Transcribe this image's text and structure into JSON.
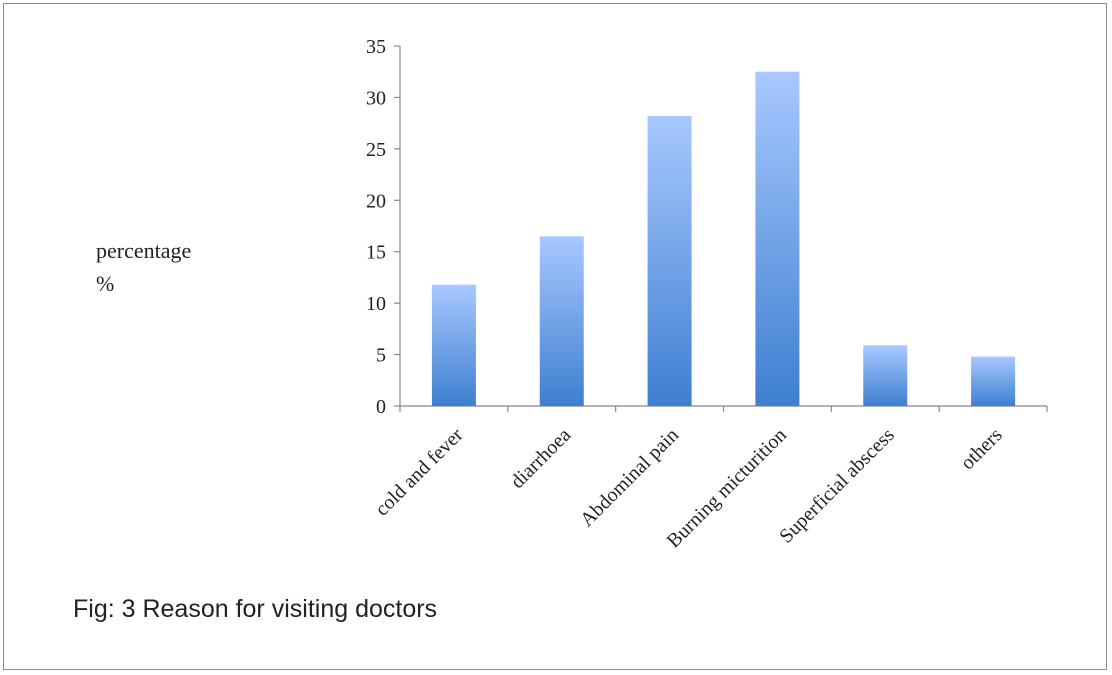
{
  "chart_data": {
    "type": "bar",
    "categories": [
      "cold and fever",
      "diarrhoea",
      "Abdominal pain",
      "Burning micturition",
      "Superficial abscess",
      "others"
    ],
    "values": [
      11.8,
      16.5,
      28.2,
      32.5,
      5.9,
      4.8
    ],
    "ylabel_line1": "percentage",
    "ylabel_line2": "%",
    "ylim": [
      0,
      35
    ],
    "yticks": [
      0,
      5,
      10,
      15,
      20,
      25,
      30,
      35
    ],
    "grid": false,
    "bar_color_top": "#a8c8ff",
    "bar_color_bottom": "#3e7fd0",
    "caption": "Fig: 3 Reason for visiting doctors"
  }
}
